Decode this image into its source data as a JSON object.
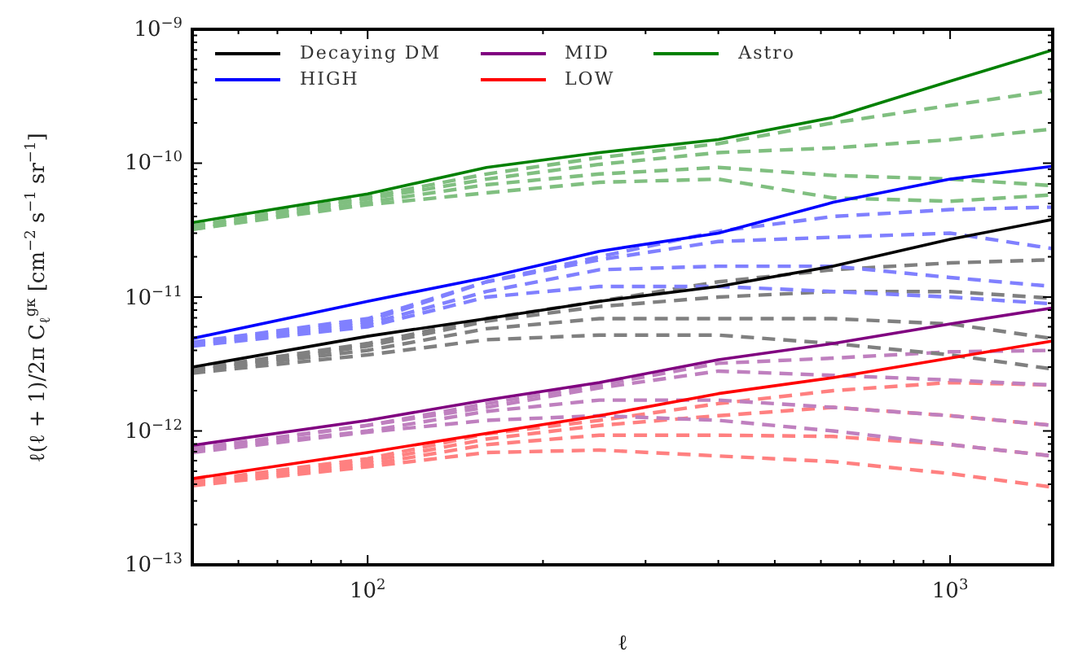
{
  "chart_data": {
    "type": "line",
    "xlabel": "ℓ",
    "ylabel": "ℓ(ℓ + 1)/2π C$_{ℓ}$$^{gκ}$ [cm$^{−2}$ s$^{−1}$ sr$^{−1}$]",
    "log": "xy",
    "legend": "top left",
    "line_style": "solid",
    "marker": "none",
    "xlim": [
      50,
      1500
    ],
    "ylim": [
      1e-13,
      1e-09
    ],
    "xticks": [
      {
        "value": 60,
        "label": null
      },
      {
        "value": 70,
        "label": null
      },
      {
        "value": 80,
        "label": null
      },
      {
        "value": 90,
        "label": null
      },
      {
        "value": 100,
        "label": "10$^{2}$"
      },
      {
        "value": 200,
        "label": null
      },
      {
        "value": 300,
        "label": null
      },
      {
        "value": 400,
        "label": null
      },
      {
        "value": 500,
        "label": null
      },
      {
        "value": 600,
        "label": null
      },
      {
        "value": 700,
        "label": null
      },
      {
        "value": 800,
        "label": null
      },
      {
        "value": 900,
        "label": null
      },
      {
        "value": 1000,
        "label": "10$^{3}$"
      }
    ],
    "yticks": [
      {
        "value": 1e-13,
        "label": "10$^{−13}$"
      },
      {
        "value": 2e-13,
        "label": null
      },
      {
        "value": 3e-13,
        "label": null
      },
      {
        "value": 4e-13,
        "label": null
      },
      {
        "value": 5e-13,
        "label": null
      },
      {
        "value": 6e-13,
        "label": null
      },
      {
        "value": 7e-13,
        "label": null
      },
      {
        "value": 8e-13,
        "label": null
      },
      {
        "value": 9e-13,
        "label": null
      },
      {
        "value": 1e-12,
        "label": "10$^{−12}$"
      },
      {
        "value": 2e-12,
        "label": null
      },
      {
        "value": 3e-12,
        "label": null
      },
      {
        "value": 4e-12,
        "label": null
      },
      {
        "value": 5e-12,
        "label": null
      },
      {
        "value": 6e-12,
        "label": null
      },
      {
        "value": 7e-12,
        "label": null
      },
      {
        "value": 8e-12,
        "label": null
      },
      {
        "value": 9e-12,
        "label": null
      },
      {
        "value": 1e-11,
        "label": "10$^{−11}$"
      },
      {
        "value": 2e-11,
        "label": null
      },
      {
        "value": 3e-11,
        "label": null
      },
      {
        "value": 4e-11,
        "label": null
      },
      {
        "value": 5e-11,
        "label": null
      },
      {
        "value": 6e-11,
        "label": null
      },
      {
        "value": 7e-11,
        "label": null
      },
      {
        "value": 8e-11,
        "label": null
      },
      {
        "value": 9e-11,
        "label": null
      },
      {
        "value": 1e-10,
        "label": "10$^{−10}$"
      },
      {
        "value": 2e-10,
        "label": null
      },
      {
        "value": 3e-10,
        "label": null
      },
      {
        "value": 4e-10,
        "label": null
      },
      {
        "value": 5e-10,
        "label": null
      },
      {
        "value": 6e-10,
        "label": null
      },
      {
        "value": 7e-10,
        "label": null
      },
      {
        "value": 8e-10,
        "label": null
      },
      {
        "value": 9e-10,
        "label": null
      },
      {
        "value": 1e-09,
        "label": "10$^{−9}$"
      }
    ],
    "x": [
      50,
      100,
      160,
      250,
      400,
      630,
      1000,
      1500
    ],
    "series": [
      {
        "name": "Decaying DM",
        "color": "#000000",
        "values": [
          3e-12,
          5.1e-12,
          6.9e-12,
          9.3e-12,
          1.2e-11,
          1.7e-11,
          2.7e-11,
          3.8e-11
        ]
      },
      {
        "name": "HIGH",
        "color": "#0000ff",
        "values": [
          4.9e-12,
          9.3e-12,
          1.4e-11,
          2.2e-11,
          3e-11,
          5.1e-11,
          7.6e-11,
          9.5e-11
        ]
      },
      {
        "name": "MID",
        "color": "#800080",
        "values": [
          7.8e-13,
          1.2e-12,
          1.7e-12,
          2.3e-12,
          3.4e-12,
          4.5e-12,
          6.3e-12,
          8.3e-12
        ]
      },
      {
        "name": "LOW",
        "color": "#ff0000",
        "values": [
          4.4e-13,
          6.9e-13,
          9.6e-13,
          1.3e-12,
          1.9e-12,
          2.5e-12,
          3.5e-12,
          4.7e-12
        ]
      },
      {
        "name": "Astro",
        "color": "#008000",
        "values": [
          3.6e-11,
          5.9e-11,
          9.3e-11,
          1.2e-10,
          1.5e-10,
          2.2e-10,
          4.1e-10,
          7e-10
        ]
      },
      {
        "color": "#80bf80",
        "line_style": "dashed",
        "values": [
          3.4e-11,
          5.6e-11,
          8.3e-11,
          1.1e-10,
          1.4e-10,
          2e-10,
          2.7e-10,
          3.5e-10
        ]
      },
      {
        "color": "#80bf80",
        "line_style": "dashed",
        "values": [
          3.3e-11,
          5.4e-11,
          7.6e-11,
          9.8e-11,
          1.2e-10,
          1.3e-10,
          1.5e-10,
          1.8e-10
        ]
      },
      {
        "color": "#80bf80",
        "line_style": "dashed",
        "values": [
          3.2e-11,
          5.1e-11,
          6.9e-11,
          8.3e-11,
          9.3e-11,
          8.1e-11,
          7.6e-11,
          6.8e-11
        ]
      },
      {
        "color": "#80bf80",
        "line_style": "dashed",
        "values": [
          3.2e-11,
          4.9e-11,
          6e-11,
          7.2e-11,
          7.6e-11,
          5.5e-11,
          5.2e-11,
          5.8e-11
        ]
      },
      {
        "color": "#8080ff",
        "line_style": "dashed",
        "values": [
          4.6e-12,
          6.9e-12,
          1.3e-11,
          2e-11,
          3.1e-11,
          4e-11,
          4.5e-11,
          4.7e-11
        ]
      },
      {
        "color": "#8080ff",
        "line_style": "dashed",
        "values": [
          4.5e-12,
          6.6e-12,
          1.3e-11,
          1.9e-11,
          2.6e-11,
          2.8e-11,
          3e-11,
          2.3e-11
        ]
      },
      {
        "color": "#8080ff",
        "line_style": "dashed",
        "values": [
          4.4e-12,
          6.3e-12,
          1.1e-11,
          1.6e-11,
          1.7e-11,
          1.7e-11,
          1.4e-11,
          1.2e-11
        ]
      },
      {
        "color": "#8080ff",
        "line_style": "dashed",
        "values": [
          4.3e-12,
          6e-12,
          1e-11,
          1.2e-11,
          1.2e-11,
          1.1e-11,
          1e-11,
          8.9e-12
        ]
      },
      {
        "color": "#808080",
        "line_style": "dashed",
        "values": [
          2.9e-12,
          4.5e-12,
          6.9e-12,
          9.3e-12,
          1.3e-11,
          1.6e-11,
          1.8e-11,
          1.9e-11
        ]
      },
      {
        "color": "#808080",
        "line_style": "dashed",
        "values": [
          2.8e-12,
          4.3e-12,
          6.6e-12,
          8.5e-12,
          1e-11,
          1.1e-11,
          1.1e-11,
          9.8e-12
        ]
      },
      {
        "color": "#808080",
        "line_style": "dashed",
        "values": [
          2.8e-12,
          4e-12,
          5.8e-12,
          6.9e-12,
          6.9e-12,
          6.9e-12,
          6.3e-12,
          4.9e-12
        ]
      },
      {
        "color": "#808080",
        "line_style": "dashed",
        "values": [
          2.7e-12,
          3.7e-12,
          4.8e-12,
          5.2e-12,
          5.2e-12,
          4.5e-12,
          3.7e-12,
          2.9e-12
        ]
      },
      {
        "color": "#bf80bf",
        "line_style": "dashed",
        "values": [
          7.4e-13,
          1.1e-12,
          1.6e-12,
          2.2e-12,
          3.2e-12,
          3.5e-12,
          3.9e-12,
          4e-12
        ]
      },
      {
        "color": "#bf80bf",
        "line_style": "dashed",
        "values": [
          7.2e-13,
          1.1e-12,
          1.5e-12,
          2.1e-12,
          2.8e-12,
          2.6e-12,
          2.4e-12,
          2.2e-12
        ]
      },
      {
        "color": "#bf80bf",
        "line_style": "dashed",
        "values": [
          7.1e-13,
          1e-12,
          1.4e-12,
          1.7e-12,
          1.7e-12,
          1.5e-12,
          1.3e-12,
          1.1e-12
        ]
      },
      {
        "color": "#bf80bf",
        "line_style": "dashed",
        "values": [
          6.9e-13,
          9.8e-13,
          1.2e-12,
          1.3e-12,
          1.2e-12,
          1e-12,
          7.9e-13,
          6.5e-13
        ]
      },
      {
        "color": "#ff8080",
        "line_style": "dashed",
        "values": [
          4.2e-13,
          6.2e-13,
          9.5e-13,
          1.2e-12,
          1.6e-12,
          2e-12,
          2.3e-12,
          2.2e-12
        ]
      },
      {
        "color": "#ff8080",
        "line_style": "dashed",
        "values": [
          4.1e-13,
          5.9e-13,
          8.7e-13,
          1.1e-12,
          1.3e-12,
          1.5e-12,
          1.3e-12,
          1.1e-12
        ]
      },
      {
        "color": "#ff8080",
        "line_style": "dashed",
        "values": [
          4e-13,
          5.6e-13,
          7.9e-13,
          9.3e-13,
          9.3e-13,
          9.1e-13,
          7.9e-13,
          6.5e-13
        ]
      },
      {
        "color": "#ff8080",
        "line_style": "dashed",
        "values": [
          3.9e-13,
          5.4e-13,
          6.9e-13,
          7.2e-13,
          6.5e-13,
          5.9e-13,
          4.8e-13,
          3.8e-13
        ]
      }
    ]
  }
}
